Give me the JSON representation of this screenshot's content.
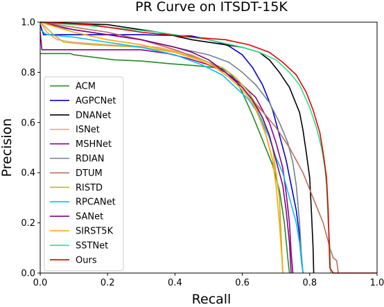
{
  "chart_data": {
    "type": "line",
    "title": "PR Curve on ITSDT-15K",
    "xlabel": "Recall",
    "ylabel": "Precision",
    "xlim": [
      0,
      1
    ],
    "ylim": [
      0,
      1
    ],
    "xticks": [
      "0.0",
      "0.2",
      "0.4",
      "0.6",
      "0.8",
      "1.0"
    ],
    "yticks": [
      "0.0",
      "0.2",
      "0.4",
      "0.6",
      "0.8",
      "1.0"
    ],
    "grid": false,
    "legend_position": "lower-left",
    "series": [
      {
        "name": "ACM",
        "color": "#228B22",
        "points": [
          [
            0,
            0.875
          ],
          [
            0.09,
            0.875
          ],
          [
            0.1,
            0.87
          ],
          [
            0.16,
            0.86
          ],
          [
            0.22,
            0.85
          ],
          [
            0.3,
            0.845
          ],
          [
            0.38,
            0.835
          ],
          [
            0.45,
            0.828
          ],
          [
            0.5,
            0.822
          ],
          [
            0.54,
            0.815
          ],
          [
            0.56,
            0.8
          ],
          [
            0.58,
            0.77
          ],
          [
            0.6,
            0.72
          ],
          [
            0.63,
            0.63
          ],
          [
            0.66,
            0.53
          ],
          [
            0.69,
            0.43
          ],
          [
            0.71,
            0.33
          ],
          [
            0.725,
            0.2
          ],
          [
            0.735,
            0.06
          ],
          [
            0.74,
            0
          ]
        ]
      },
      {
        "name": "AGPCNet",
        "color": "#0000CD",
        "points": [
          [
            0,
            0.99
          ],
          [
            0.01,
            0.95
          ],
          [
            0.3,
            0.95
          ],
          [
            0.45,
            0.945
          ],
          [
            0.5,
            0.93
          ],
          [
            0.53,
            0.92
          ],
          [
            0.56,
            0.905
          ],
          [
            0.6,
            0.87
          ],
          [
            0.63,
            0.82
          ],
          [
            0.66,
            0.75
          ],
          [
            0.69,
            0.65
          ],
          [
            0.71,
            0.55
          ],
          [
            0.73,
            0.45
          ],
          [
            0.745,
            0.35
          ],
          [
            0.76,
            0.25
          ],
          [
            0.77,
            0.15
          ],
          [
            0.775,
            0.06
          ],
          [
            0.78,
            0
          ]
        ]
      },
      {
        "name": "DNANet",
        "color": "#000000",
        "points": [
          [
            0,
            1.0
          ],
          [
            0.2,
            0.99
          ],
          [
            0.35,
            0.96
          ],
          [
            0.45,
            0.93
          ],
          [
            0.55,
            0.91
          ],
          [
            0.6,
            0.9
          ],
          [
            0.65,
            0.88
          ],
          [
            0.68,
            0.85
          ],
          [
            0.71,
            0.8
          ],
          [
            0.74,
            0.74
          ],
          [
            0.77,
            0.64
          ],
          [
            0.78,
            0.57
          ],
          [
            0.79,
            0.48
          ],
          [
            0.8,
            0.38
          ],
          [
            0.805,
            0.25
          ],
          [
            0.81,
            0.1
          ],
          [
            0.812,
            0
          ]
        ]
      },
      {
        "name": "ISNet",
        "color": "#FFA07A",
        "points": [
          [
            0,
            1.0
          ],
          [
            0.02,
            0.96
          ],
          [
            0.05,
            0.93
          ],
          [
            0.1,
            0.92
          ],
          [
            0.2,
            0.91
          ],
          [
            0.35,
            0.9
          ],
          [
            0.45,
            0.87
          ],
          [
            0.5,
            0.84
          ],
          [
            0.55,
            0.8
          ],
          [
            0.6,
            0.74
          ],
          [
            0.63,
            0.69
          ],
          [
            0.66,
            0.6
          ],
          [
            0.68,
            0.5
          ],
          [
            0.7,
            0.4
          ],
          [
            0.71,
            0.3
          ],
          [
            0.715,
            0.15
          ],
          [
            0.72,
            0
          ]
        ]
      },
      {
        "name": "MSHNet",
        "color": "#8B008B",
        "points": [
          [
            0,
            0.96
          ],
          [
            0.005,
            0.89
          ],
          [
            0.3,
            0.89
          ],
          [
            0.38,
            0.875
          ],
          [
            0.44,
            0.855
          ],
          [
            0.5,
            0.83
          ],
          [
            0.55,
            0.8
          ],
          [
            0.6,
            0.75
          ],
          [
            0.64,
            0.7
          ],
          [
            0.68,
            0.6
          ],
          [
            0.7,
            0.52
          ],
          [
            0.72,
            0.42
          ],
          [
            0.73,
            0.32
          ],
          [
            0.74,
            0.2
          ],
          [
            0.745,
            0.08
          ],
          [
            0.75,
            0
          ]
        ]
      },
      {
        "name": "RDIAN",
        "color": "#708090",
        "points": [
          [
            0,
            1.0
          ],
          [
            0.05,
            0.98
          ],
          [
            0.15,
            0.96
          ],
          [
            0.3,
            0.93
          ],
          [
            0.4,
            0.9
          ],
          [
            0.5,
            0.87
          ],
          [
            0.56,
            0.84
          ],
          [
            0.6,
            0.8
          ],
          [
            0.64,
            0.75
          ],
          [
            0.68,
            0.68
          ],
          [
            0.71,
            0.6
          ],
          [
            0.735,
            0.52
          ],
          [
            0.75,
            0.44
          ],
          [
            0.76,
            0.35
          ],
          [
            0.77,
            0.2
          ],
          [
            0.775,
            0.08
          ],
          [
            0.78,
            0
          ]
        ]
      },
      {
        "name": "DTUM",
        "color": "#BC6C5C",
        "points": [
          [
            0,
            1.0
          ],
          [
            0.1,
            0.98
          ],
          [
            0.2,
            0.96
          ],
          [
            0.3,
            0.93
          ],
          [
            0.4,
            0.89
          ],
          [
            0.5,
            0.84
          ],
          [
            0.55,
            0.8
          ],
          [
            0.6,
            0.74
          ],
          [
            0.65,
            0.66
          ],
          [
            0.7,
            0.58
          ],
          [
            0.74,
            0.5
          ],
          [
            0.78,
            0.4
          ],
          [
            0.81,
            0.3
          ],
          [
            0.84,
            0.2
          ],
          [
            0.86,
            0.1
          ],
          [
            0.87,
            0.06
          ],
          [
            0.88,
            0.05
          ],
          [
            0.885,
            0
          ]
        ]
      },
      {
        "name": "RISTD",
        "color": "#BDB82A",
        "points": [
          [
            0,
            1.0
          ],
          [
            0.04,
            0.95
          ],
          [
            0.07,
            0.92
          ],
          [
            0.15,
            0.91
          ],
          [
            0.3,
            0.9
          ],
          [
            0.4,
            0.88
          ],
          [
            0.48,
            0.85
          ],
          [
            0.54,
            0.82
          ],
          [
            0.58,
            0.78
          ],
          [
            0.62,
            0.72
          ],
          [
            0.65,
            0.65
          ],
          [
            0.67,
            0.58
          ],
          [
            0.69,
            0.5
          ],
          [
            0.7,
            0.4
          ],
          [
            0.71,
            0.3
          ],
          [
            0.715,
            0.15
          ],
          [
            0.72,
            0
          ]
        ]
      },
      {
        "name": "RPCANet",
        "color": "#00BFFF",
        "points": [
          [
            0,
            0.97
          ],
          [
            0.02,
            0.95
          ],
          [
            0.1,
            0.94
          ],
          [
            0.2,
            0.92
          ],
          [
            0.3,
            0.9
          ],
          [
            0.4,
            0.87
          ],
          [
            0.48,
            0.83
          ],
          [
            0.54,
            0.79
          ],
          [
            0.58,
            0.74
          ],
          [
            0.62,
            0.69
          ],
          [
            0.65,
            0.63
          ],
          [
            0.68,
            0.54
          ],
          [
            0.7,
            0.46
          ],
          [
            0.72,
            0.4
          ],
          [
            0.74,
            0.3
          ],
          [
            0.76,
            0.2
          ],
          [
            0.77,
            0.12
          ],
          [
            0.775,
            0.05
          ],
          [
            0.78,
            0
          ]
        ]
      },
      {
        "name": "SANet",
        "color": "#800080",
        "points": [
          [
            0,
            1.0
          ],
          [
            0.1,
            0.97
          ],
          [
            0.2,
            0.95
          ],
          [
            0.3,
            0.93
          ],
          [
            0.4,
            0.9
          ],
          [
            0.45,
            0.88
          ],
          [
            0.5,
            0.85
          ],
          [
            0.55,
            0.8
          ],
          [
            0.6,
            0.74
          ],
          [
            0.63,
            0.69
          ],
          [
            0.66,
            0.62
          ],
          [
            0.68,
            0.55
          ],
          [
            0.7,
            0.45
          ],
          [
            0.72,
            0.35
          ],
          [
            0.73,
            0.25
          ],
          [
            0.74,
            0.12
          ],
          [
            0.745,
            0
          ]
        ]
      },
      {
        "name": "SIRST5K",
        "color": "#FFA500",
        "points": [
          [
            0,
            1.0
          ],
          [
            0.05,
            0.98
          ],
          [
            0.1,
            0.96
          ],
          [
            0.2,
            0.93
          ],
          [
            0.3,
            0.91
          ],
          [
            0.4,
            0.88
          ],
          [
            0.47,
            0.85
          ],
          [
            0.52,
            0.82
          ],
          [
            0.56,
            0.78
          ],
          [
            0.6,
            0.73
          ],
          [
            0.63,
            0.68
          ],
          [
            0.65,
            0.62
          ],
          [
            0.67,
            0.55
          ],
          [
            0.69,
            0.45
          ],
          [
            0.7,
            0.35
          ],
          [
            0.71,
            0.2
          ],
          [
            0.718,
            0.05
          ],
          [
            0.72,
            0
          ]
        ]
      },
      {
        "name": "SSTNet",
        "color": "#2EE08A",
        "points": [
          [
            0,
            1.0
          ],
          [
            0.2,
            0.98
          ],
          [
            0.35,
            0.96
          ],
          [
            0.5,
            0.93
          ],
          [
            0.6,
            0.9
          ],
          [
            0.65,
            0.88
          ],
          [
            0.7,
            0.85
          ],
          [
            0.74,
            0.8
          ],
          [
            0.77,
            0.75
          ],
          [
            0.8,
            0.66
          ],
          [
            0.82,
            0.58
          ],
          [
            0.835,
            0.5
          ],
          [
            0.845,
            0.42
          ],
          [
            0.85,
            0.35
          ],
          [
            0.855,
            0.2
          ],
          [
            0.86,
            0.1
          ],
          [
            0.862,
            0
          ]
        ]
      },
      {
        "name": "Ours",
        "color": "#E00000",
        "points": [
          [
            0,
            1.0
          ],
          [
            0.15,
            0.99
          ],
          [
            0.3,
            0.96
          ],
          [
            0.45,
            0.94
          ],
          [
            0.55,
            0.93
          ],
          [
            0.62,
            0.91
          ],
          [
            0.68,
            0.88
          ],
          [
            0.72,
            0.84
          ],
          [
            0.76,
            0.79
          ],
          [
            0.79,
            0.72
          ],
          [
            0.81,
            0.65
          ],
          [
            0.83,
            0.56
          ],
          [
            0.84,
            0.48
          ],
          [
            0.85,
            0.38
          ],
          [
            0.855,
            0.25
          ],
          [
            0.858,
            0.1
          ],
          [
            0.86,
            0.02
          ],
          [
            0.87,
            0
          ],
          [
            1.0,
            0
          ]
        ]
      }
    ]
  }
}
